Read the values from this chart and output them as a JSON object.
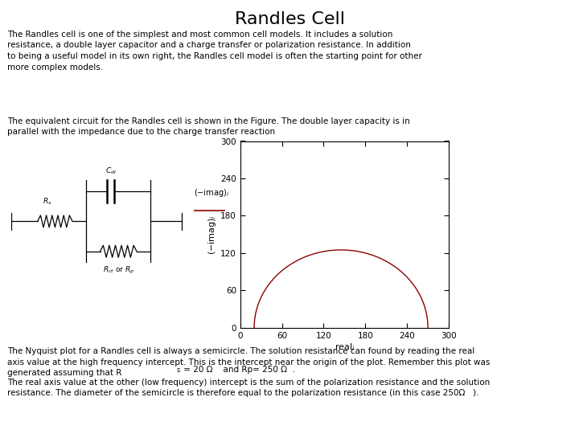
{
  "title": "Randles Cell",
  "title_fontsize": 16,
  "background_color": "#ffffff",
  "Rs": 20,
  "Rp": 250,
  "plot_xlim": [
    0,
    300
  ],
  "plot_ylim": [
    0,
    300
  ],
  "plot_xticks": [
    0,
    60,
    120,
    180,
    240,
    300
  ],
  "plot_yticks": [
    0,
    60,
    120,
    180,
    240,
    300
  ],
  "semicircle_color": "#8b0000",
  "text_fontsize": 7.5,
  "para1": "The Randles cell is one of the simplest and most common cell models. It includes a solution\nresistance, a double layer capacitor and a charge transfer or polarization resistance. In addition\nto being a useful model in its own right, the Randles cell model is often the starting point for other\nmore complex models.",
  "para2": "The equivalent circuit for the Randles cell is shown in the Figure. The double layer capacity is in\nparallel with the impedance due to the charge transfer reaction",
  "para3a": "The Nyquist plot for a Randles cell is always a semicircle. The solution resistance can found by reading the real\naxis value at the high frequency intercept. This is the intercept near the origin of the plot. Remember this plot was\ngenerated assuming that R",
  "para3b": " = 20 Ω    and Rp= 250 Ω  .",
  "para4": "The real axis value at the other (low frequency) intercept is the sum of the polarization resistance and the solution\nresistance. The diameter of the semicircle is therefore equal to the polarization resistance (in this case 250Ω   )."
}
